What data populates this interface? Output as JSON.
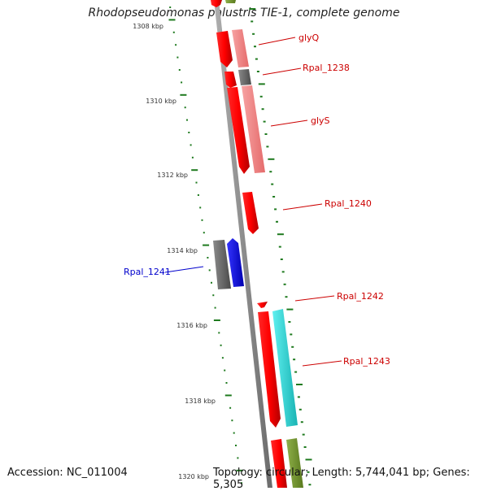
{
  "title": "Rhodopseudomonas palustris TIE-1, complete genome",
  "accession": "Accession: NC_011004",
  "summary": "Topology: circular; Length: 5,744,041 bp; Genes: 5,305",
  "colors": {
    "backbone": "#7f7f7f",
    "tick": "#1f7a1f",
    "label_red": "#cc0000",
    "label_blue": "#0000cc"
  },
  "kbp_labels": [
    {
      "kbp": 1308,
      "text": "1308 kbp"
    },
    {
      "kbp": 1310,
      "text": "1310 kbp"
    },
    {
      "kbp": 1312,
      "text": "1312 kbp"
    },
    {
      "kbp": 1314,
      "text": "1314 kbp"
    },
    {
      "kbp": 1316,
      "text": "1316 kbp"
    },
    {
      "kbp": 1318,
      "text": "1318 kbp"
    },
    {
      "kbp": 1320,
      "text": "1320 kbp"
    }
  ],
  "genes": [
    {
      "name": "glyQ",
      "color": "#ff0000"
    },
    {
      "name": "Rpal_1238",
      "color": "#ff0000"
    },
    {
      "name": "glyS",
      "color": "#ff0000"
    },
    {
      "name": "Rpal_1240",
      "color": "#ff0000"
    },
    {
      "name": "Rpal_1241",
      "color": "#0000ff"
    },
    {
      "name": "Rpal_1242",
      "color": "#ff0000"
    },
    {
      "name": "Rpal_1243",
      "color": "#ff0000"
    }
  ]
}
